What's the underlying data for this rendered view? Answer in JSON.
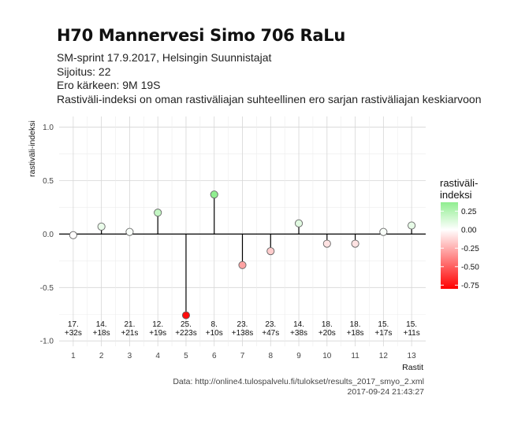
{
  "title": "H70 Mannervesi Simo 706 RaLu",
  "subtitle_lines": [
    "SM-sprint 17.9.2017, Helsingin Suunnistajat",
    "Sijoitus: 22",
    "Ero kärkeen: 9M 19S",
    "Rastiväli-indeksi on oman rastiväliajan suhteellinen ero sarjan rastiväliajan keskiarvoon"
  ],
  "caption_lines": [
    "Data: http://online4.tulospalvelu.fi/tulokset/results_2017_smyo_2.xml",
    "2017-09-24 21:43:27"
  ],
  "chart_data": {
    "type": "scatter",
    "style": "lollipop",
    "xlabel": "Rastit",
    "ylabel": "rastiväli-indeksi",
    "x": [
      1,
      2,
      3,
      4,
      5,
      6,
      7,
      8,
      9,
      10,
      11,
      12,
      13
    ],
    "y": [
      -0.01,
      0.07,
      0.02,
      0.2,
      -0.76,
      0.37,
      -0.29,
      -0.16,
      0.1,
      -0.09,
      -0.09,
      0.02,
      0.08
    ],
    "point_labels": [
      [
        "17.",
        "+32s"
      ],
      [
        "14.",
        "+18s"
      ],
      [
        "21.",
        "+21s"
      ],
      [
        "12.",
        "+19s"
      ],
      [
        "25.",
        "+223s"
      ],
      [
        "8.",
        "+10s"
      ],
      [
        "23.",
        "+138s"
      ],
      [
        "23.",
        "+47s"
      ],
      [
        "14.",
        "+38s"
      ],
      [
        "18.",
        "+20s"
      ],
      [
        "18.",
        "+18s"
      ],
      [
        "15.",
        "+17s"
      ],
      [
        "15.",
        "+11s"
      ]
    ],
    "xlim": [
      0.5,
      13.5
    ],
    "ylim": [
      -1.05,
      1.1
    ],
    "y_ticks": [
      -1.0,
      -0.5,
      0.0,
      0.5,
      1.0
    ],
    "y_tick_labels": [
      "-1.0",
      "-0.5",
      "0.0",
      "0.5",
      "1.0"
    ],
    "x_tick_labels": [
      "1",
      "2",
      "3",
      "4",
      "5",
      "6",
      "7",
      "8",
      "9",
      "10",
      "11",
      "12",
      "13"
    ],
    "grid": true,
    "legend": {
      "title_lines": [
        "rastiväli-",
        "indeksi"
      ],
      "position": "right",
      "ticks": [
        0.25,
        0.0,
        -0.25,
        -0.5,
        -0.75
      ],
      "tick_labels": [
        "0.25",
        "0.00",
        "-0.25",
        "-0.50",
        "-0.75"
      ],
      "range": [
        -0.8,
        0.37
      ]
    },
    "colors": {
      "low": "#ff0000",
      "mid": "#ffffff",
      "high": "#90ee90"
    }
  }
}
